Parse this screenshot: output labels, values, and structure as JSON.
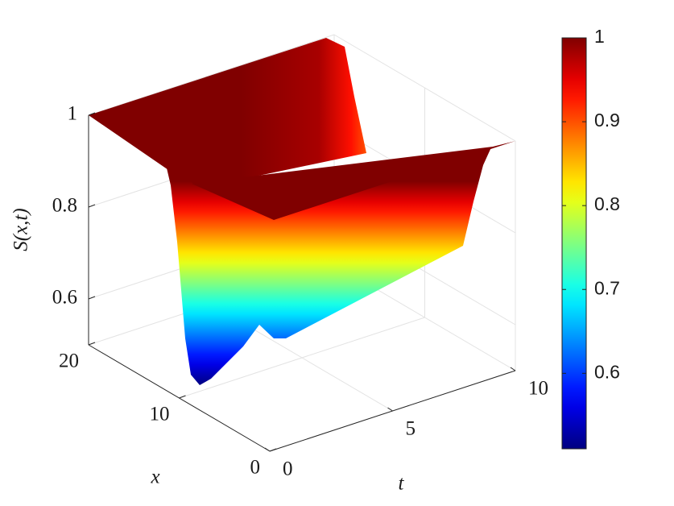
{
  "chart_data": {
    "type": "surface",
    "zlabel": "S(x,t)",
    "xlabel": "x",
    "ylabel": "t",
    "xlim": [
      0,
      20
    ],
    "xticks": [
      0,
      10,
      20
    ],
    "ylim": [
      0,
      10
    ],
    "yticks": [
      0,
      5,
      10
    ],
    "zlim": [
      0.5,
      1
    ],
    "zticks": [
      0.6,
      0.8,
      1
    ],
    "colormap": "jet",
    "colorbar": {
      "clim": [
        0.51,
        1
      ],
      "ticks": [
        0.6,
        0.7,
        0.8,
        0.9,
        1
      ]
    },
    "grid": true
  }
}
